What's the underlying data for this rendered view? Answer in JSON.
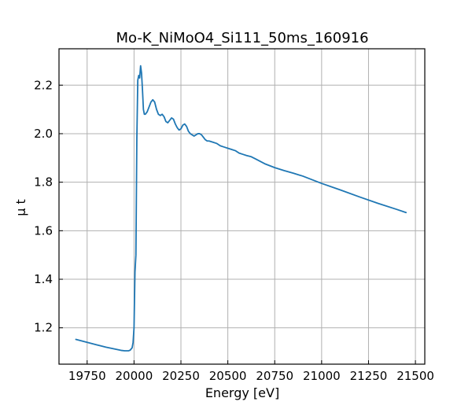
{
  "chart_data": {
    "type": "line",
    "title": "Mo-K_NiMoO4_Si111_50ms_160916",
    "xlabel": "Energy [eV]",
    "ylabel": "μ t",
    "xlim": [
      19600,
      21550
    ],
    "ylim": [
      1.05,
      2.35
    ],
    "xticks": [
      19750,
      20000,
      20250,
      20500,
      20750,
      21000,
      21250,
      21500
    ],
    "yticks": [
      1.2,
      1.4,
      1.6,
      1.8,
      2.0,
      2.2
    ],
    "xtick_labels": [
      "19750",
      "20000",
      "20250",
      "20500",
      "20750",
      "21000",
      "21250",
      "21500"
    ],
    "ytick_labels": [
      "1.2",
      "1.4",
      "1.6",
      "1.8",
      "2.0",
      "2.2"
    ],
    "grid": true,
    "color": "#1f77b4",
    "series": [
      {
        "x": [
          19690,
          19750,
          19800,
          19850,
          19900,
          19930,
          19950,
          19970,
          19980,
          19990,
          19995,
          20000,
          20005,
          20010,
          20015,
          20020,
          20025,
          20030,
          20035,
          20040,
          20045,
          20050,
          20055,
          20060,
          20070,
          20080,
          20090,
          20100,
          20110,
          20120,
          20130,
          20140,
          20150,
          20160,
          20170,
          20180,
          20190,
          20200,
          20210,
          20220,
          20230,
          20240,
          20250,
          20260,
          20270,
          20280,
          20290,
          20300,
          20310,
          20320,
          20330,
          20340,
          20350,
          20360,
          20370,
          20380,
          20390,
          20400,
          20420,
          20440,
          20460,
          20480,
          20500,
          20520,
          20540,
          20560,
          20580,
          20600,
          20625,
          20650,
          20675,
          20700,
          20750,
          20800,
          20850,
          20900,
          20950,
          21000,
          21100,
          21200,
          21300,
          21400,
          21450
        ],
        "y": [
          1.152,
          1.14,
          1.13,
          1.12,
          1.112,
          1.107,
          1.105,
          1.105,
          1.108,
          1.118,
          1.14,
          1.2,
          1.43,
          1.5,
          1.98,
          2.22,
          2.24,
          2.23,
          2.28,
          2.25,
          2.18,
          2.1,
          2.08,
          2.08,
          2.09,
          2.11,
          2.13,
          2.14,
          2.13,
          2.1,
          2.08,
          2.075,
          2.08,
          2.07,
          2.05,
          2.045,
          2.055,
          2.065,
          2.06,
          2.04,
          2.025,
          2.015,
          2.02,
          2.035,
          2.04,
          2.03,
          2.01,
          2.0,
          1.995,
          1.99,
          1.995,
          2.0,
          2.0,
          1.995,
          1.985,
          1.975,
          1.97,
          1.97,
          1.965,
          1.96,
          1.95,
          1.945,
          1.94,
          1.935,
          1.93,
          1.92,
          1.915,
          1.91,
          1.905,
          1.895,
          1.885,
          1.875,
          1.86,
          1.848,
          1.837,
          1.825,
          1.81,
          1.795,
          1.768,
          1.74,
          1.713,
          1.688,
          1.675
        ]
      }
    ]
  }
}
